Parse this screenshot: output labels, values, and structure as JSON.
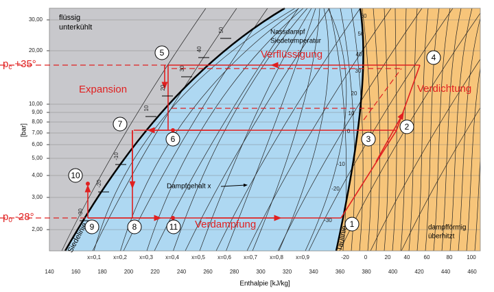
{
  "axes": {
    "y_label": "[bar]",
    "y_ticks": [
      "30,00",
      "20,00",
      "10,00",
      "9,00",
      "8,00",
      "7,00",
      "6,00",
      "5,00",
      "4,00",
      "3,00",
      "2,00"
    ],
    "x_label": "Enthalpie [kJ/kg]",
    "x_ticks": [
      "140",
      "160",
      "180",
      "200",
      "220",
      "240",
      "260",
      "280",
      "300",
      "320",
      "340",
      "360",
      "380",
      "400",
      "420",
      "440",
      "460"
    ]
  },
  "regions": {
    "liquid": [
      "flüssig",
      "unterkühlt"
    ],
    "wet": [
      "Nassdampf",
      "Siedetemperatur"
    ],
    "vapor": [
      "dampfförmig",
      "überhitzt"
    ]
  },
  "curves": {
    "boiling": "Siedelinie",
    "dew": "Taulinie",
    "quality": "Dampfgehalt x"
  },
  "isotherms_liquid": [
    "-30",
    "-20",
    "-10",
    "10",
    "20",
    "30",
    "40",
    "50"
  ],
  "isotherms_dew": [
    "60",
    "50",
    "40",
    "30",
    "20",
    "10",
    "0",
    "-10",
    "-20",
    "-30"
  ],
  "isotherms_bottom": [
    "-20",
    "0",
    "20",
    "40",
    "60",
    "80",
    "100"
  ],
  "quality_labels": [
    "x=0,1",
    "x=0,2",
    "x=0,3",
    "x=0,4",
    "x=0,5",
    "x=0,6",
    "x=0,7",
    "x=0,8",
    "x=0,9"
  ],
  "process_labels": {
    "condensation": "Verflüssigung",
    "compression": "Verdichtung",
    "expansion": "Expansion",
    "evaporation": "Verdampfung"
  },
  "pressure_labels": {
    "high": {
      "symbol": "p",
      "sub": "c",
      "text": "+35°"
    },
    "low": {
      "symbol": "p",
      "sub": "0",
      "text": "-28°"
    }
  },
  "points": [
    "1",
    "2",
    "3",
    "4",
    "5",
    "6",
    "7",
    "8",
    "9",
    "10",
    "11"
  ]
}
